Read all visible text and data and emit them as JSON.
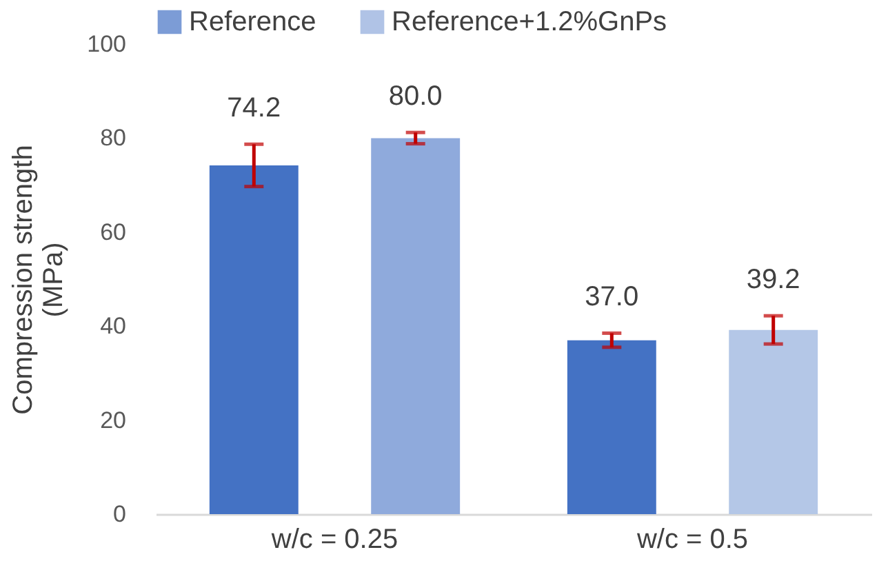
{
  "chart_data": {
    "type": "bar",
    "ylabel": "Compression strength (MPa)",
    "categories": [
      "w/c = 0.25",
      "w/c = 0.5"
    ],
    "series": [
      {
        "name": "Reference",
        "color": "#4472c4",
        "values": [
          74.2,
          37.0
        ],
        "errors": [
          4.5,
          1.5
        ],
        "value_labels": [
          "74.2",
          "37.0"
        ]
      },
      {
        "name": "Reference+1.2%GnPs",
        "color": "#8faadc",
        "colors": [
          "#8faadc",
          "#b4c7e7"
        ],
        "values": [
          80.0,
          39.2
        ],
        "errors": [
          1.2,
          3
        ],
        "value_labels": [
          "80.0",
          "39.2"
        ]
      }
    ],
    "ylim": [
      0,
      100
    ],
    "yticks": [
      0,
      20,
      40,
      60,
      80,
      100
    ],
    "grid": false,
    "legend": "top"
  }
}
